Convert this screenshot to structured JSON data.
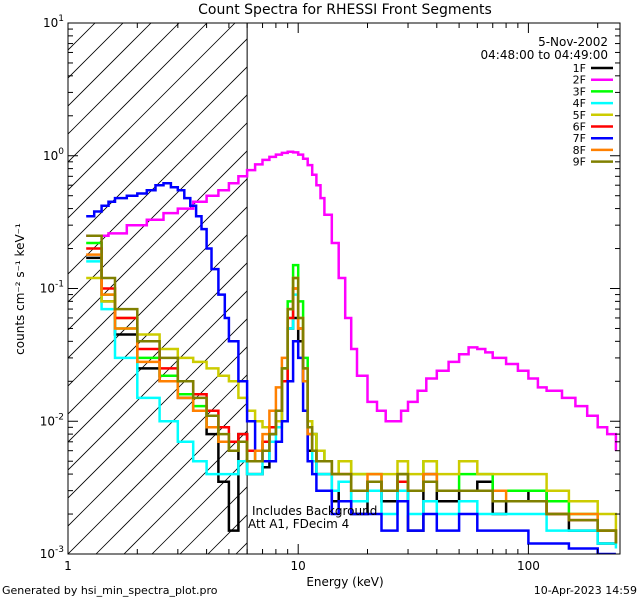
{
  "chart_data": {
    "type": "line",
    "title": "Count Spectra for RHESSI Front Segments",
    "xlabel": "Energy (keV)",
    "ylabel": "counts cm⁻² s⁻¹ keV⁻¹",
    "xscale": "log",
    "yscale": "log",
    "xlim": [
      1,
      250
    ],
    "ylim": [
      0.001,
      10
    ],
    "x_ticks": [
      {
        "value": 1,
        "label": "1"
      },
      {
        "value": 10,
        "label": "10"
      },
      {
        "value": 100,
        "label": "100"
      }
    ],
    "y_ticks": [
      {
        "value": 0.001,
        "base": "10",
        "exp": "-3"
      },
      {
        "value": 0.01,
        "base": "10",
        "exp": "-2"
      },
      {
        "value": 0.1,
        "base": "10",
        "exp": "-1"
      },
      {
        "value": 1,
        "base": "10",
        "exp": "0"
      },
      {
        "value": 10,
        "base": "10",
        "exp": "1"
      }
    ],
    "date": "5-Nov-2002",
    "time_range": "04:48:00 to 04:49:00",
    "hatched_region": {
      "from": 1,
      "to": 6
    },
    "annotations": [
      "Includes Background",
      "Att A1, FDecim 4"
    ],
    "footer_left": "Generated by hsi_min_spectra_plot.pro",
    "footer_right": "10-Apr-2023 14:59",
    "series": [
      {
        "name": "1F",
        "color": "#000000",
        "x": [
          1.2,
          1.4,
          1.6,
          2,
          2.5,
          3,
          3.5,
          4,
          4.5,
          5,
          5.5,
          6,
          6.5,
          7,
          7.5,
          8,
          8.5,
          9,
          9.5,
          10,
          10.5,
          11,
          11.5,
          12,
          13,
          14,
          15,
          17,
          20,
          23,
          27,
          30,
          35,
          40,
          50,
          60,
          70,
          80,
          100,
          120,
          150,
          200,
          240
        ],
        "y": [
          0.17,
          0.08,
          0.045,
          0.025,
          0.02,
          0.015,
          0.012,
          0.008,
          0.0035,
          0.0015,
          0.008,
          0.004,
          0.004,
          0.0045,
          0.008,
          0.01,
          0.02,
          0.05,
          0.06,
          0.04,
          0.02,
          0.006,
          0.008,
          0.004,
          0.004,
          0.0025,
          0.0035,
          0.002,
          0.0035,
          0.0025,
          0.0035,
          0.0015,
          0.004,
          0.0025,
          0.003,
          0.0035,
          0.002,
          0.0025,
          0.003,
          0.002,
          0.0015,
          0.0012,
          0.0012
        ]
      },
      {
        "name": "2F",
        "color": "#ff00ff",
        "x": [
          1.2,
          1.5,
          1.8,
          2.2,
          2.6,
          3,
          3.5,
          4,
          4.5,
          5,
          5.5,
          6,
          6.5,
          7,
          7.5,
          8,
          8.5,
          9,
          9.5,
          10,
          10.5,
          11,
          11.5,
          12,
          12.5,
          13,
          14,
          15,
          16,
          17,
          18,
          20,
          22,
          24,
          26,
          28,
          30,
          33,
          36,
          40,
          45,
          50,
          55,
          60,
          65,
          70,
          80,
          90,
          100,
          110,
          120,
          140,
          160,
          180,
          200,
          220,
          240
        ],
        "y": [
          0.25,
          0.26,
          0.3,
          0.33,
          0.37,
          0.4,
          0.45,
          0.5,
          0.55,
          0.62,
          0.7,
          0.78,
          0.86,
          0.93,
          0.98,
          1.02,
          1.05,
          1.07,
          1.06,
          1.02,
          0.95,
          0.85,
          0.72,
          0.6,
          0.48,
          0.36,
          0.22,
          0.12,
          0.06,
          0.035,
          0.022,
          0.014,
          0.012,
          0.01,
          0.01,
          0.012,
          0.014,
          0.017,
          0.021,
          0.024,
          0.028,
          0.032,
          0.036,
          0.035,
          0.033,
          0.03,
          0.027,
          0.024,
          0.021,
          0.018,
          0.017,
          0.015,
          0.013,
          0.011,
          0.009,
          0.008,
          0.006
        ]
      },
      {
        "name": "3F",
        "color": "#00ff00",
        "x": [
          1.2,
          1.4,
          1.6,
          2,
          2.5,
          3,
          3.5,
          4,
          4.5,
          5,
          5.5,
          6,
          6.5,
          7,
          7.5,
          8,
          8.5,
          9,
          9.5,
          10,
          10.5,
          11,
          11.5,
          12,
          13,
          14,
          15,
          17,
          20,
          23,
          27,
          30,
          35,
          40,
          50,
          60,
          70,
          80,
          100,
          120,
          150,
          200,
          240
        ],
        "y": [
          0.22,
          0.09,
          0.05,
          0.03,
          0.022,
          0.016,
          0.013,
          0.009,
          0.007,
          0.006,
          0.007,
          0.005,
          0.006,
          0.007,
          0.009,
          0.012,
          0.025,
          0.08,
          0.15,
          0.08,
          0.03,
          0.01,
          0.008,
          0.006,
          0.005,
          0.004,
          0.005,
          0.004,
          0.004,
          0.003,
          0.004,
          0.003,
          0.005,
          0.003,
          0.004,
          0.004,
          0.003,
          0.003,
          0.003,
          0.0025,
          0.002,
          0.0015,
          0.0012
        ]
      },
      {
        "name": "4F",
        "color": "#00ffff",
        "x": [
          1.2,
          1.4,
          1.6,
          2,
          2.5,
          3,
          3.5,
          4,
          4.5,
          5,
          5.5,
          6,
          6.5,
          7,
          7.5,
          8,
          8.5,
          9,
          9.5,
          10,
          10.5,
          11,
          11.5,
          12,
          13,
          14,
          15,
          17,
          20,
          23,
          27,
          30,
          35,
          40,
          50,
          60,
          70,
          80,
          100,
          120,
          150,
          200,
          240
        ],
        "y": [
          0.16,
          0.07,
          0.03,
          0.015,
          0.01,
          0.007,
          0.005,
          0.004,
          0.004,
          0.004,
          0.005,
          0.004,
          0.004,
          0.005,
          0.007,
          0.009,
          0.02,
          0.05,
          0.09,
          0.05,
          0.02,
          0.008,
          0.005,
          0.004,
          0.004,
          0.003,
          0.0035,
          0.0025,
          0.003,
          0.002,
          0.003,
          0.002,
          0.0025,
          0.002,
          0.0025,
          0.002,
          0.002,
          0.002,
          0.002,
          0.0015,
          0.0015,
          0.0012,
          0.0011
        ]
      },
      {
        "name": "5F",
        "color": "#cccc00",
        "x": [
          1.2,
          1.4,
          1.6,
          2,
          2.5,
          3,
          3.5,
          4,
          4.5,
          5,
          5.5,
          6,
          6.5,
          7,
          7.5,
          8,
          8.5,
          9,
          9.5,
          10,
          10.5,
          11,
          11.5,
          12,
          13,
          14,
          15,
          17,
          20,
          23,
          27,
          30,
          35,
          40,
          50,
          60,
          70,
          80,
          100,
          120,
          150,
          200,
          240
        ],
        "y": [
          0.12,
          0.08,
          0.06,
          0.045,
          0.035,
          0.03,
          0.028,
          0.025,
          0.022,
          0.02,
          0.015,
          0.012,
          0.01,
          0.009,
          0.009,
          0.01,
          0.02,
          0.06,
          0.12,
          0.06,
          0.025,
          0.01,
          0.008,
          0.006,
          0.005,
          0.004,
          0.005,
          0.004,
          0.004,
          0.004,
          0.005,
          0.004,
          0.005,
          0.004,
          0.005,
          0.004,
          0.004,
          0.004,
          0.004,
          0.003,
          0.0025,
          0.002,
          0.0015
        ]
      },
      {
        "name": "6F",
        "color": "#ff0000",
        "x": [
          1.2,
          1.4,
          1.6,
          2,
          2.5,
          3,
          3.5,
          4,
          4.5,
          5,
          5.5,
          6,
          6.5,
          7,
          7.5,
          8,
          8.5,
          9,
          9.5,
          10,
          10.5,
          11,
          11.5,
          12,
          13,
          14,
          15,
          17,
          20,
          23,
          27,
          30,
          35,
          40,
          50,
          60,
          70,
          80,
          100,
          120,
          150,
          200,
          240
        ],
        "y": [
          0.2,
          0.1,
          0.06,
          0.035,
          0.025,
          0.02,
          0.016,
          0.012,
          0.009,
          0.007,
          0.008,
          0.006,
          0.006,
          0.007,
          0.009,
          0.012,
          0.02,
          0.06,
          0.1,
          0.05,
          0.02,
          0.008,
          0.006,
          0.005,
          0.005,
          0.004,
          0.004,
          0.003,
          0.0035,
          0.003,
          0.0035,
          0.003,
          0.0035,
          0.003,
          0.003,
          0.003,
          0.0025,
          0.0025,
          0.0025,
          0.002,
          0.0018,
          0.0015,
          0.0012
        ]
      },
      {
        "name": "7F",
        "color": "#0000ff",
        "x": [
          1.2,
          1.3,
          1.4,
          1.5,
          1.6,
          1.8,
          2,
          2.2,
          2.4,
          2.6,
          2.8,
          3,
          3.2,
          3.4,
          3.6,
          3.8,
          4,
          4.2,
          4.5,
          4.8,
          5,
          5.5,
          6,
          6.5,
          7,
          7.5,
          8,
          8.5,
          9,
          9.5,
          10,
          10.5,
          11,
          11.5,
          12,
          13,
          14,
          15,
          17,
          20,
          23,
          27,
          30,
          35,
          40,
          50,
          60,
          70,
          80,
          100,
          120,
          150,
          200,
          240
        ],
        "y": [
          0.35,
          0.38,
          0.42,
          0.45,
          0.48,
          0.5,
          0.52,
          0.55,
          0.6,
          0.62,
          0.58,
          0.55,
          0.48,
          0.42,
          0.35,
          0.28,
          0.2,
          0.14,
          0.09,
          0.06,
          0.04,
          0.02,
          0.01,
          0.006,
          0.005,
          0.005,
          0.007,
          0.01,
          0.02,
          0.04,
          0.03,
          0.012,
          0.005,
          0.004,
          0.003,
          0.003,
          0.002,
          0.0025,
          0.002,
          0.002,
          0.0015,
          0.0025,
          0.0015,
          0.002,
          0.0015,
          0.002,
          0.0015,
          0.0015,
          0.0015,
          0.0012,
          0.0012,
          0.0011,
          0.001,
          0.001
        ]
      },
      {
        "name": "8F",
        "color": "#ff8000",
        "x": [
          1.2,
          1.4,
          1.6,
          2,
          2.5,
          3,
          3.5,
          4,
          4.5,
          5,
          5.5,
          6,
          6.5,
          7,
          7.5,
          8,
          8.5,
          9,
          9.5,
          10,
          10.5,
          11,
          11.5,
          12,
          13,
          14,
          15,
          17,
          20,
          23,
          27,
          30,
          35,
          40,
          50,
          60,
          70,
          80,
          100,
          120,
          150,
          200,
          240
        ],
        "y": [
          0.18,
          0.09,
          0.05,
          0.028,
          0.02,
          0.015,
          0.012,
          0.009,
          0.007,
          0.006,
          0.007,
          0.005,
          0.006,
          0.008,
          0.012,
          0.018,
          0.03,
          0.07,
          0.1,
          0.05,
          0.02,
          0.008,
          0.006,
          0.005,
          0.005,
          0.004,
          0.004,
          0.003,
          0.004,
          0.003,
          0.004,
          0.003,
          0.004,
          0.003,
          0.003,
          0.003,
          0.003,
          0.0025,
          0.0025,
          0.002,
          0.002,
          0.0015,
          0.0012
        ]
      },
      {
        "name": "9F",
        "color": "#808000",
        "x": [
          1.2,
          1.4,
          1.6,
          2,
          2.5,
          3,
          3.5,
          4,
          4.5,
          5,
          5.5,
          6,
          6.5,
          7,
          7.5,
          8,
          8.5,
          9,
          9.5,
          10,
          10.5,
          11,
          11.5,
          12,
          13,
          14,
          15,
          17,
          20,
          23,
          27,
          30,
          35,
          40,
          50,
          60,
          70,
          80,
          100,
          120,
          150,
          200,
          240
        ],
        "y": [
          0.25,
          0.12,
          0.07,
          0.04,
          0.03,
          0.02,
          0.015,
          0.011,
          0.008,
          0.006,
          0.007,
          0.005,
          0.005,
          0.006,
          0.008,
          0.012,
          0.025,
          0.07,
          0.12,
          0.06,
          0.025,
          0.009,
          0.006,
          0.005,
          0.005,
          0.004,
          0.004,
          0.003,
          0.0035,
          0.003,
          0.004,
          0.003,
          0.0035,
          0.003,
          0.003,
          0.003,
          0.0025,
          0.0025,
          0.0025,
          0.002,
          0.0018,
          0.0015,
          0.0012
        ]
      }
    ]
  }
}
